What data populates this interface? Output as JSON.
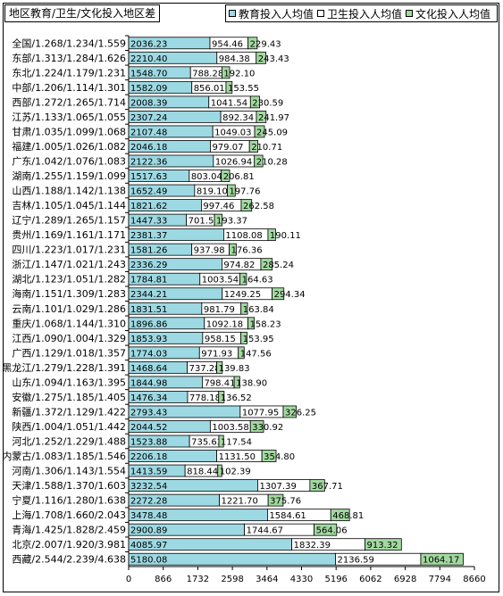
{
  "chart_data": {
    "type": "bar",
    "orientation": "horizontal",
    "stacked": true,
    "title": "地区教育/卫生/文化投入地区差",
    "xlim": [
      0,
      8660
    ],
    "xticks": [
      "0",
      "866",
      "1732",
      "2598",
      "3464",
      "4330",
      "5196",
      "6062",
      "6928",
      "7794",
      "8660"
    ],
    "legend_position": "top-right",
    "grid": false,
    "categories": [
      "全国/1.268/1.234/1.559",
      "东部/1.313/1.284/1.626",
      "东北/1.224/1.179/1.231",
      "中部/1.206/1.114/1.301",
      "西部/1.272/1.265/1.714",
      "江苏/1.133/1.065/1.055",
      "甘肃/1.035/1.099/1.068",
      "福建/1.005/1.026/1.082",
      "广东/1.042/1.076/1.083",
      "湖南/1.255/1.159/1.099",
      "山西/1.188/1.142/1.138",
      "吉林/1.105/1.045/1.144",
      "辽宁/1.289/1.265/1.157",
      "贵州/1.169/1.161/1.171",
      "四川/1.223/1.017/1.231",
      "浙江/1.147/1.021/1.243",
      "湖北/1.123/1.051/1.282",
      "海南/1.151/1.309/1.283",
      "云南/1.101/1.029/1.286",
      "重庆/1.068/1.144/1.310",
      "江西/1.090/1.004/1.329",
      "广西/1.129/1.018/1.357",
      "黑龙江/1.279/1.228/1.391",
      "山东/1.094/1.163/1.395",
      "安徽/1.275/1.185/1.405",
      "新疆/1.372/1.129/1.422",
      "陕西/1.004/1.051/1.442",
      "河北/1.252/1.229/1.488",
      "内蒙古/1.083/1.185/1.546",
      "河南/1.306/1.143/1.554",
      "天津/1.588/1.370/1.603",
      "宁夏/1.116/1.280/1.638",
      "上海/1.708/1.660/2.043",
      "青海/1.425/1.828/2.459",
      "北京/2.007/1.920/3.981",
      "西藏/2.544/2.239/4.638"
    ],
    "series": [
      {
        "name": "教育投入人均值",
        "color": "#9dd9e3",
        "values": [
          2036.23,
          2210.4,
          1548.7,
          1582.09,
          2008.39,
          2307.24,
          2107.48,
          2046.18,
          2122.36,
          1517.63,
          1652.49,
          1821.62,
          1447.33,
          2381.37,
          1581.26,
          2336.29,
          1784.81,
          2344.21,
          1831.51,
          1896.86,
          1853.93,
          1774.03,
          1468.64,
          1844.98,
          1476.34,
          2793.43,
          2044.52,
          1523.88,
          2206.18,
          1413.59,
          3232.54,
          2272.28,
          3478.48,
          2900.89,
          4085.97,
          5180.08
        ],
        "labels": [
          "2036.23",
          "2210.40",
          "1548.70",
          "1582.09",
          "2008.39",
          "2307.24",
          "2107.48",
          "2046.18",
          "2122.36",
          "1517.63",
          "1652.49",
          "1821.62",
          "1447.33",
          "2381.37",
          "1581.26",
          "2336.29",
          "1784.81",
          "2344.21",
          "1831.51",
          "1896.86",
          "1853.93",
          "1774.03",
          "1468.64",
          "1844.98",
          "1476.34",
          "2793.43",
          "2044.52",
          "1523.88",
          "2206.18",
          "1413.59",
          "3232.54",
          "2272.28",
          "3478.48",
          "2900.89",
          "4085.97",
          "5180.08"
        ]
      },
      {
        "name": "卫生投入人均值",
        "color": "#ffffff",
        "values": [
          954.46,
          984.38,
          788.28,
          856.01,
          1041.54,
          892.34,
          1049.03,
          979.07,
          1026.94,
          803.04,
          819.1,
          997.46,
          701.59,
          1108.08,
          937.98,
          974.82,
          1003.54,
          1249.25,
          981.79,
          1092.18,
          958.15,
          971.93,
          737.28,
          798.41,
          778.18,
          1077.95,
          1003.58,
          735.63,
          1131.5,
          818.44,
          1307.39,
          1221.7,
          1584.61,
          1744.67,
          1832.39,
          2136.59
        ],
        "labels": [
          "954.46",
          "984.38",
          "788.28",
          "856.01",
          "1041.54",
          "892.34",
          "1049.03",
          "979.07",
          "1026.94",
          "803.04",
          "819.10",
          "997.46",
          "701.59",
          "1108.08",
          "937.98",
          "974.82",
          "1003.54",
          "1249.25",
          "981.79",
          "1092.18",
          "958.15",
          "971.93",
          "737.28",
          "798.41",
          "778.18",
          "1077.95",
          "1003.58",
          "735.63",
          "1131.50",
          "818.44",
          "1307.39",
          "1221.70",
          "1584.61",
          "1744.67",
          "1832.39",
          "2136.59"
        ]
      },
      {
        "name": "文化投入人均值",
        "color": "#a3d9a0",
        "values": [
          229.43,
          243.43,
          192.1,
          153.55,
          230.59,
          241.97,
          245.09,
          210.71,
          210.28,
          206.81,
          197.76,
          262.58,
          193.37,
          190.11,
          176.36,
          285.24,
          164.63,
          294.34,
          163.84,
          158.23,
          153.95,
          147.56,
          139.83,
          138.9,
          136.52,
          326.25,
          330.92,
          117.54,
          354.8,
          102.39,
          367.71,
          375.76,
          468.81,
          564.06,
          913.32,
          1064.17
        ],
        "labels": [
          "229.43",
          "243.43",
          "192.10",
          "153.55",
          "230.59",
          "241.97",
          "245.09",
          "210.71",
          "210.28",
          "206.81",
          "197.76",
          "262.58",
          "193.37",
          "190.11",
          "176.36",
          "285.24",
          "164.63",
          "294.34",
          "163.84",
          "158.23",
          "153.95",
          "147.56",
          "139.83",
          "138.90",
          "136.52",
          "326.25",
          "330.92",
          "117.54",
          "354.80",
          "102.39",
          "367.71",
          "375.76",
          "468.81",
          "564.06",
          "913.32",
          "1064.17"
        ]
      }
    ]
  }
}
